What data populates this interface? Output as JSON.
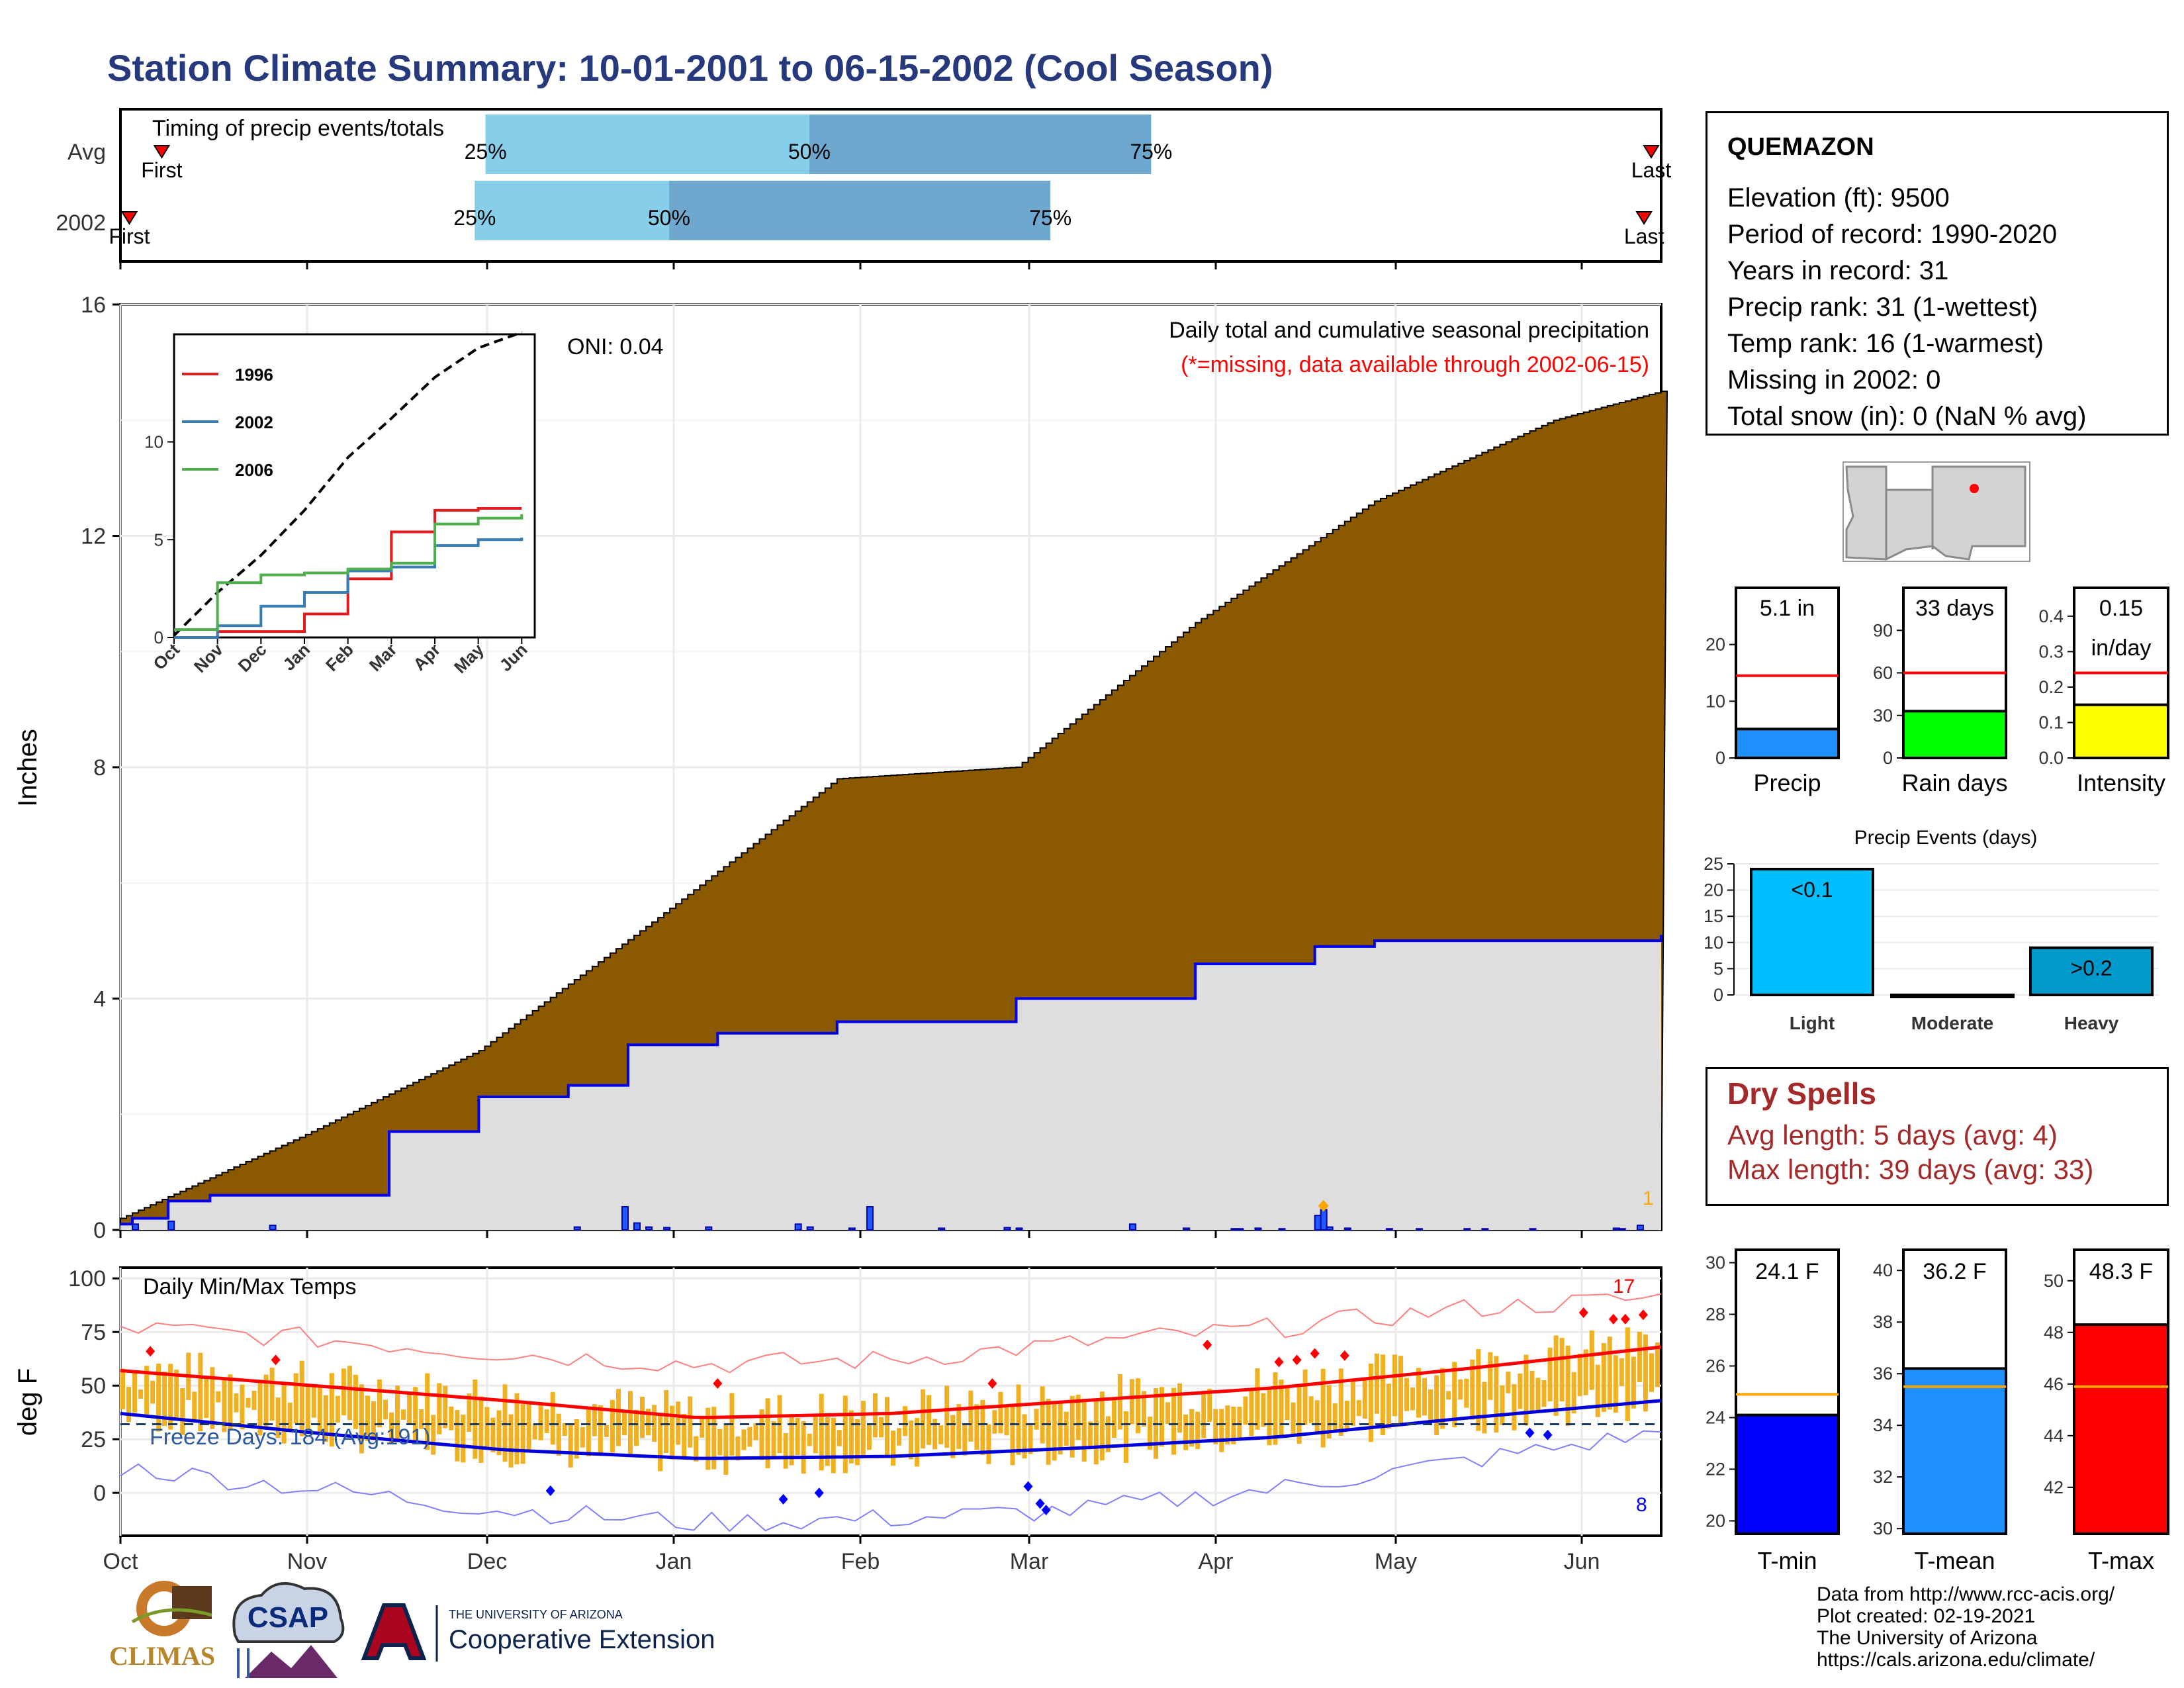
{
  "title": "Station Climate Summary: 10-01-2001 to 06-15-2002 (Cool Season)",
  "timing": {
    "label": "Timing of precip events/totals",
    "rows": [
      {
        "name": "Avg",
        "first": "First",
        "last": "Last",
        "p25": "25%",
        "p50": "50%",
        "p75": "75%",
        "first_day": 10,
        "p25_day": 100,
        "p50_day": 190,
        "p75_day": 285,
        "last_day": 424
      },
      {
        "name": "2002",
        "first": "First",
        "last": "Last",
        "p25": "25%",
        "p50": "50%",
        "p75": "75%",
        "first_day": 1,
        "p25_day": 97,
        "p50_day": 151,
        "p75_day": 257,
        "last_day": 422
      }
    ]
  },
  "station": {
    "name": "QUEMAZON",
    "lines": [
      "Elevation (ft): 9500",
      "Period of record: 1990-2020",
      "Years in record: 31",
      "Precip rank: 31 (1-wettest)",
      "Temp rank: 16 (1-warmest)",
      "Missing in 2002: 0",
      "Total snow (in): 0 (NaN % avg)"
    ]
  },
  "precip_panel": {
    "ylabel": "Inches",
    "yticks": [
      "0",
      "4",
      "8",
      "12",
      "16"
    ],
    "xticks": [
      "Oct",
      "Nov",
      "Dec",
      "Jan",
      "Feb",
      "Mar",
      "Apr",
      "May",
      "Jun"
    ],
    "annotation_title": "Daily total and cumulative seasonal precipitation",
    "annotation_missing": "(*=missing, data available through 2002-06-15)",
    "oni": "ONI: 0.04",
    "extreme_count": "1"
  },
  "inset": {
    "legend": [
      "1996",
      "2002",
      "2006"
    ],
    "colors": [
      "#e41a1c",
      "#377eb8",
      "#4daf4a"
    ],
    "yticks": [
      "0",
      "5",
      "10"
    ],
    "xticks": [
      "Oct",
      "Nov",
      "Dec",
      "Jan",
      "Feb",
      "Mar",
      "Apr",
      "May",
      "Jun"
    ]
  },
  "temp_panel": {
    "ylabel": "deg F",
    "yticks": [
      "0",
      "25",
      "50",
      "75",
      "100"
    ],
    "xticks": [
      "Oct",
      "Nov",
      "Dec",
      "Jan",
      "Feb",
      "Mar",
      "Apr",
      "May",
      "Jun"
    ],
    "label": "Daily Min/Max Temps",
    "freeze": "Freeze Days: 184 (Avg:191)",
    "hot_count": "17",
    "cold_count": "8"
  },
  "summary_bars": {
    "precip": {
      "value_label": "5.1 in",
      "label": "Precip",
      "yticks": [
        "0",
        "10",
        "20"
      ]
    },
    "raindays": {
      "value_label": "33 days",
      "label": "Rain days",
      "yticks": [
        "0",
        "30",
        "60",
        "90"
      ]
    },
    "intensity": {
      "value_label_1": "0.15",
      "value_label_2": "in/day",
      "label": "Intensity",
      "yticks": [
        "0.0",
        "0.1",
        "0.2",
        "0.3",
        "0.4"
      ]
    }
  },
  "events": {
    "title": "Precip Events (days)",
    "categories": [
      "Light",
      "Moderate",
      "Heavy"
    ],
    "bar_labels": [
      "<0.1",
      "",
      ">0.2"
    ],
    "yticks": [
      "0",
      "5",
      "10",
      "15",
      "20",
      "25"
    ]
  },
  "dry_spells": {
    "title": "Dry Spells",
    "avg": "Avg length: 5 days (avg: 4)",
    "max": "Max length: 39 days (avg: 33)"
  },
  "temp_bars": {
    "tmin": {
      "value_label": "24.1 F",
      "label": "T-min",
      "yticks": [
        "20",
        "22",
        "24",
        "26",
        "28",
        "30"
      ]
    },
    "tmean": {
      "value_label": "36.2 F",
      "label": "T-mean",
      "yticks": [
        "30",
        "32",
        "34",
        "36",
        "38",
        "40"
      ]
    },
    "tmax": {
      "value_label": "48.3 F",
      "label": "T-max",
      "yticks": [
        "42",
        "44",
        "46",
        "48",
        "50"
      ]
    }
  },
  "credits": [
    "Data from http://www.rcc-acis.org/",
    "Plot created: 02-19-2021",
    "The University of Arizona",
    "https://cals.arizona.edu/climate/"
  ],
  "logos": {
    "climas": "CLIMAS",
    "csap": "CSAP",
    "ua_small": "THE UNIVERSITY OF ARIZONA",
    "ua_big": "Cooperative Extension"
  },
  "colors": {
    "title": "#26397c",
    "avg_cum_fill": "#8b5a00",
    "obs_cum_fill": "#dedede",
    "obs_line": "#0000ee",
    "temp_bar": "#f0b020",
    "precip_bar": "#1e90ff",
    "raindays_bar": "#00ff00",
    "intensity_bar": "#ffff00",
    "light_bar": "#00bfff",
    "heavy_bar": "#0099cc",
    "tmin_bar": "#0000ff",
    "tmean_bar": "#1e90ff",
    "tmax_bar": "#ff0000",
    "dry_text": "#a42a2a"
  },
  "chart_data": [
    {
      "type": "area",
      "title": "Daily total and cumulative seasonal precipitation",
      "ylabel": "Inches",
      "ylim": [
        0,
        16
      ],
      "x_unit": "day of season (0 = Oct 1)",
      "series": [
        {
          "name": "avg cumulative",
          "x": [
            0,
            30,
            60,
            90,
            120,
            150,
            180,
            210,
            240,
            258
          ],
          "values": [
            0.2,
            1.6,
            3.1,
            5.4,
            7.8,
            8.0,
            10.5,
            12.6,
            14.0,
            14.5
          ]
        },
        {
          "name": "2002 cumulative",
          "x": [
            0,
            2,
            8,
            15,
            20,
            25,
            45,
            60,
            75,
            85,
            100,
            120,
            150,
            180,
            200,
            210,
            230,
            258
          ],
          "values": [
            0.1,
            0.2,
            0.5,
            0.6,
            0.6,
            0.6,
            1.7,
            2.3,
            2.5,
            3.2,
            3.4,
            3.6,
            4.0,
            4.6,
            4.9,
            5.0,
            5.0,
            5.1
          ]
        }
      ]
    },
    {
      "type": "line",
      "title": "",
      "ylim": [
        0,
        16
      ],
      "x_unit": "month",
      "categories": [
        "Oct",
        "Nov",
        "Dec",
        "Jan",
        "Feb",
        "Mar",
        "Apr",
        "May",
        "Jun"
      ],
      "series": [
        {
          "name": "avg",
          "values": [
            0.1,
            2.3,
            4.2,
            6.5,
            9.2,
            11.2,
            13.3,
            14.8,
            15.6
          ]
        },
        {
          "name": "1996",
          "values": [
            0.0,
            0.3,
            0.3,
            1.2,
            3.0,
            5.4,
            6.5,
            6.6,
            6.6
          ]
        },
        {
          "name": "2002",
          "values": [
            0.0,
            0.6,
            1.6,
            2.3,
            3.4,
            3.6,
            4.7,
            5.0,
            5.1
          ]
        },
        {
          "name": "2006",
          "values": [
            0.4,
            2.8,
            3.2,
            3.3,
            3.5,
            3.8,
            5.8,
            6.1,
            6.3
          ]
        }
      ]
    },
    {
      "type": "bar",
      "title": "",
      "categories": [
        "Precip",
        "Rain days",
        "Intensity"
      ],
      "values": [
        5.1,
        33,
        0.15
      ],
      "averages": [
        14.5,
        60,
        0.24
      ]
    },
    {
      "type": "bar",
      "title": "Precip Events (days)",
      "categories": [
        "Light",
        "Moderate",
        "Heavy"
      ],
      "values": [
        24,
        0,
        9
      ],
      "ylim": [
        0,
        25
      ]
    },
    {
      "type": "line",
      "title": "Daily Min/Max Temps",
      "ylabel": "deg F",
      "ylim": [
        -20,
        100
      ],
      "categories": [
        "Oct",
        "Nov",
        "Dec",
        "Jan",
        "Feb",
        "Mar",
        "Apr",
        "May",
        "Jun"
      ],
      "series": [
        {
          "name": "avg max",
          "values": [
            57,
            50,
            43,
            35,
            37,
            43,
            49,
            58,
            68
          ]
        },
        {
          "name": "avg min",
          "values": [
            37,
            28,
            20,
            16,
            17,
            21,
            26,
            35,
            43
          ]
        },
        {
          "name": "record max",
          "values": [
            77,
            72,
            65,
            60,
            62,
            70,
            77,
            86,
            91
          ]
        },
        {
          "name": "record min",
          "values": [
            12,
            2,
            -8,
            -14,
            -12,
            -8,
            2,
            15,
            28
          ]
        }
      ]
    },
    {
      "type": "bar",
      "title": "",
      "categories": [
        "T-min",
        "T-mean",
        "T-max"
      ],
      "values": [
        24.1,
        36.2,
        48.3
      ],
      "averages": [
        24.9,
        35.5,
        45.9
      ]
    }
  ]
}
